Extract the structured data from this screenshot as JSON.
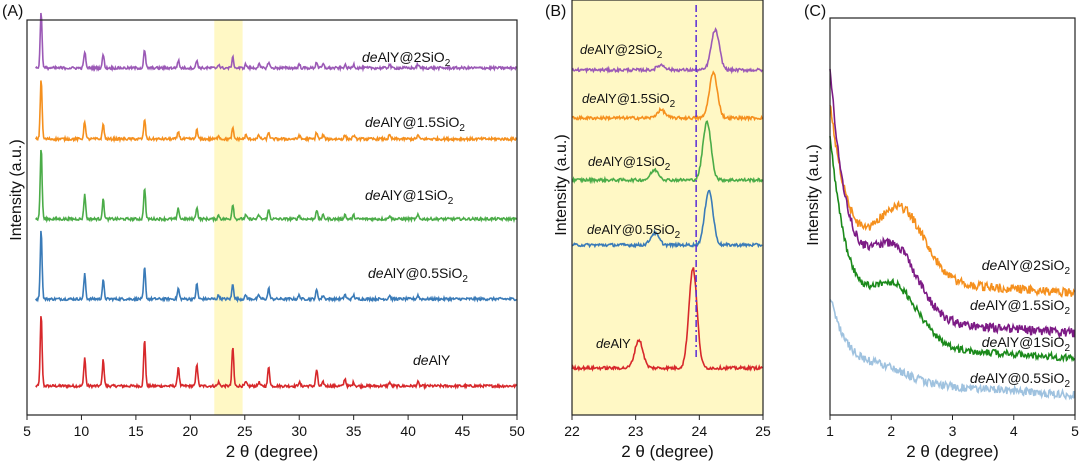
{
  "colors": {
    "red": "#d7282b",
    "blue": "#3a7bb8",
    "green": "#4bac48",
    "orange": "#f5901e",
    "purple": "#9b59b6",
    "deep_purple": "#7d1b86",
    "dark_green": "#1b8a1b",
    "light_blue": "#9fc2df",
    "highlight": "#fff8c5",
    "dashline": "#5a2bd6"
  },
  "chart_data": [
    {
      "panel_label": "(A)",
      "type": "line",
      "xlabel_main": "2 θ (degree)",
      "ylabel": "Intensity (a.u.)",
      "xlim": [
        5,
        50
      ],
      "xticks": [
        "5",
        "10",
        "15",
        "20",
        "25",
        "30",
        "35",
        "40",
        "45",
        "50"
      ],
      "highlight_range": [
        22.2,
        24.8
      ],
      "peaks": [
        6.3,
        10.3,
        12.0,
        15.8,
        18.9,
        20.6,
        23.9,
        27.2,
        31.6,
        34.2
      ],
      "series": [
        {
          "label": {
            "italic": "de",
            "main": "AlY",
            "sub": ""
          },
          "color": "red",
          "peak_heights": [
            0.95,
            0.38,
            0.35,
            0.62,
            0.26,
            0.3,
            0.52,
            0.26,
            0.22,
            0.1
          ]
        },
        {
          "label": {
            "italic": "de",
            "main": "AlY@0.5SiO",
            "sub": "2"
          },
          "color": "blue",
          "peak_heights": [
            0.92,
            0.33,
            0.25,
            0.42,
            0.14,
            0.2,
            0.2,
            0.14,
            0.12,
            0.06
          ]
        },
        {
          "label": {
            "italic": "de",
            "main": "AlY@1SiO",
            "sub": "2"
          },
          "color": "green",
          "peak_heights": [
            0.95,
            0.33,
            0.26,
            0.42,
            0.14,
            0.16,
            0.2,
            0.12,
            0.12,
            0.06
          ]
        },
        {
          "label": {
            "italic": "de",
            "main": "AlY@1.5SiO",
            "sub": "2"
          },
          "color": "orange",
          "peak_heights": [
            0.8,
            0.24,
            0.2,
            0.26,
            0.1,
            0.12,
            0.14,
            0.09,
            0.09,
            0.05
          ]
        },
        {
          "label": {
            "italic": "de",
            "main": "AlY@2SiO",
            "sub": "2"
          },
          "color": "purple",
          "peak_heights": [
            0.75,
            0.22,
            0.18,
            0.24,
            0.1,
            0.1,
            0.14,
            0.08,
            0.08,
            0.04
          ]
        }
      ]
    },
    {
      "panel_label": "(B)",
      "type": "line",
      "xlabel_main": "2 θ (degree)",
      "ylabel": "Intensity (a.u.)",
      "xlim": [
        22,
        25
      ],
      "xticks": [
        "22",
        "23",
        "24",
        "25"
      ],
      "dashed_line_x": 23.95,
      "series": [
        {
          "label": {
            "italic": "de",
            "main": "AlY",
            "sub": ""
          },
          "color": "red",
          "peaks": [
            [
              23.05,
              0.28
            ],
            [
              23.9,
              1.0
            ]
          ]
        },
        {
          "label": {
            "italic": "de",
            "main": "AlY@0.5SiO",
            "sub": "2"
          },
          "color": "blue",
          "peaks": [
            [
              23.3,
              0.12
            ],
            [
              24.15,
              0.55
            ]
          ]
        },
        {
          "label": {
            "italic": "de",
            "main": "AlY@1SiO",
            "sub": "2"
          },
          "color": "green",
          "peaks": [
            [
              23.3,
              0.1
            ],
            [
              24.12,
              0.58
            ]
          ]
        },
        {
          "label": {
            "italic": "de",
            "main": "AlY@1.5SiO",
            "sub": "2"
          },
          "color": "orange",
          "peaks": [
            [
              23.4,
              0.08
            ],
            [
              24.22,
              0.45
            ]
          ]
        },
        {
          "label": {
            "italic": "de",
            "main": "AlY@2SiO",
            "sub": "2"
          },
          "color": "purple",
          "peaks": [
            [
              23.4,
              0.05
            ],
            [
              24.25,
              0.4
            ]
          ]
        }
      ]
    },
    {
      "panel_label": "(C)",
      "type": "line",
      "xlabel_main": "2 θ (degree)",
      "ylabel": "Intensity (a.u.)",
      "xlim": [
        1,
        5
      ],
      "xticks": [
        "1",
        "2",
        "3",
        "4",
        "5"
      ],
      "series": [
        {
          "label": {
            "italic": "de",
            "main": "AlY@2SiO",
            "sub": "2"
          },
          "color": "orange"
        },
        {
          "label": {
            "italic": "de",
            "main": "AlY@1.5SiO",
            "sub": "2"
          },
          "color": "deep_purple"
        },
        {
          "label": {
            "italic": "de",
            "main": "AlY@1SiO",
            "sub": "2"
          },
          "color": "dark_green"
        },
        {
          "label": {
            "italic": "de",
            "main": "AlY@0.5SiO",
            "sub": "2"
          },
          "color": "light_blue"
        }
      ]
    }
  ]
}
